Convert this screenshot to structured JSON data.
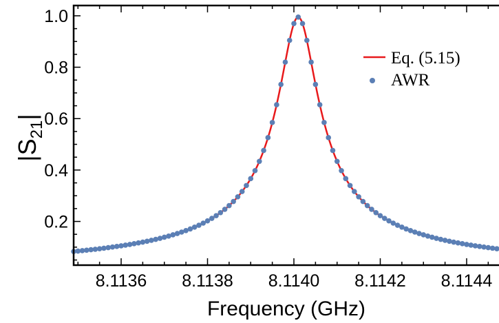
{
  "chart_data": {
    "type": "line",
    "xlabel": "Frequency (GHz)",
    "ylabel": "|S",
    "ylabel_sub": "21",
    "ylabel_close": "|",
    "xlim": [
      8.11349,
      8.11451
    ],
    "ylim": [
      0.03,
      1.04
    ],
    "xticks": [
      8.1136,
      8.1138,
      8.114,
      8.1142,
      8.1144
    ],
    "xtick_labels": [
      "8.1136",
      "8.1138",
      "8.1140",
      "8.1142",
      "8.1144"
    ],
    "yticks": [
      0.2,
      0.4,
      0.6,
      0.8,
      1.0
    ],
    "ytick_labels": [
      "0.2",
      "0.4",
      "0.6",
      "0.8",
      "1.0"
    ],
    "grid": false,
    "legend_position": "top-right",
    "series": [
      {
        "name": "Eq. (5.15)",
        "style": "line",
        "color": "#e8191b",
        "model": {
          "type": "lorentzian",
          "f0": 8.11401,
          "half_width": 4.36e-05,
          "peak": 0.995
        }
      },
      {
        "name": "AWR",
        "style": "markers",
        "color": "#5b7fb5",
        "x_start": 8.11349,
        "x_step": 1e-05,
        "count": 103,
        "model": {
          "type": "lorentzian",
          "f0": 8.11401,
          "half_width": 4.36e-05,
          "peak": 0.995
        }
      }
    ]
  }
}
